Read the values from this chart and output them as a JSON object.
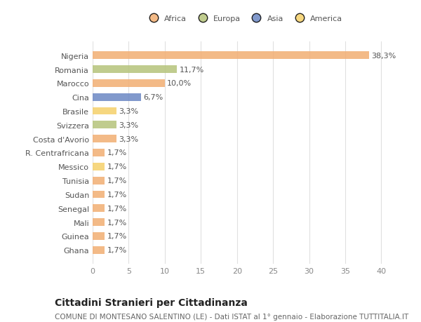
{
  "countries": [
    "Nigeria",
    "Romania",
    "Marocco",
    "Cina",
    "Brasile",
    "Svizzera",
    "Costa d'Avorio",
    "R. Centrafricana",
    "Messico",
    "Tunisia",
    "Sudan",
    "Senegal",
    "Mali",
    "Guinea",
    "Ghana"
  ],
  "values": [
    38.3,
    11.7,
    10.0,
    6.7,
    3.3,
    3.3,
    3.3,
    1.7,
    1.7,
    1.7,
    1.7,
    1.7,
    1.7,
    1.7,
    1.7
  ],
  "labels": [
    "38,3%",
    "11,7%",
    "10,0%",
    "6,7%",
    "3,3%",
    "3,3%",
    "3,3%",
    "1,7%",
    "1,7%",
    "1,7%",
    "1,7%",
    "1,7%",
    "1,7%",
    "1,7%",
    "1,7%"
  ],
  "continents": [
    "Africa",
    "Europa",
    "Africa",
    "Asia",
    "America",
    "Europa",
    "Africa",
    "Africa",
    "America",
    "Africa",
    "Africa",
    "Africa",
    "Africa",
    "Africa",
    "Africa"
  ],
  "continent_colors": {
    "Africa": "#F2AE72",
    "Europa": "#B5C47A",
    "Asia": "#6B87C4",
    "America": "#F5D06A"
  },
  "legend_order": [
    "Africa",
    "Europa",
    "Asia",
    "America"
  ],
  "title1": "Cittadini Stranieri per Cittadinanza",
  "title2": "COMUNE DI MONTESANO SALENTINO (LE) - Dati ISTAT al 1° gennaio - Elaborazione TUTTITALIA.IT",
  "xlim": [
    0,
    42
  ],
  "xticks": [
    0,
    5,
    10,
    15,
    20,
    25,
    30,
    35,
    40
  ],
  "background_color": "#ffffff",
  "grid_color": "#e0e0e0",
  "bar_height": 0.55,
  "label_fontsize": 8,
  "tick_fontsize": 8,
  "title1_fontsize": 10,
  "title2_fontsize": 7.5
}
